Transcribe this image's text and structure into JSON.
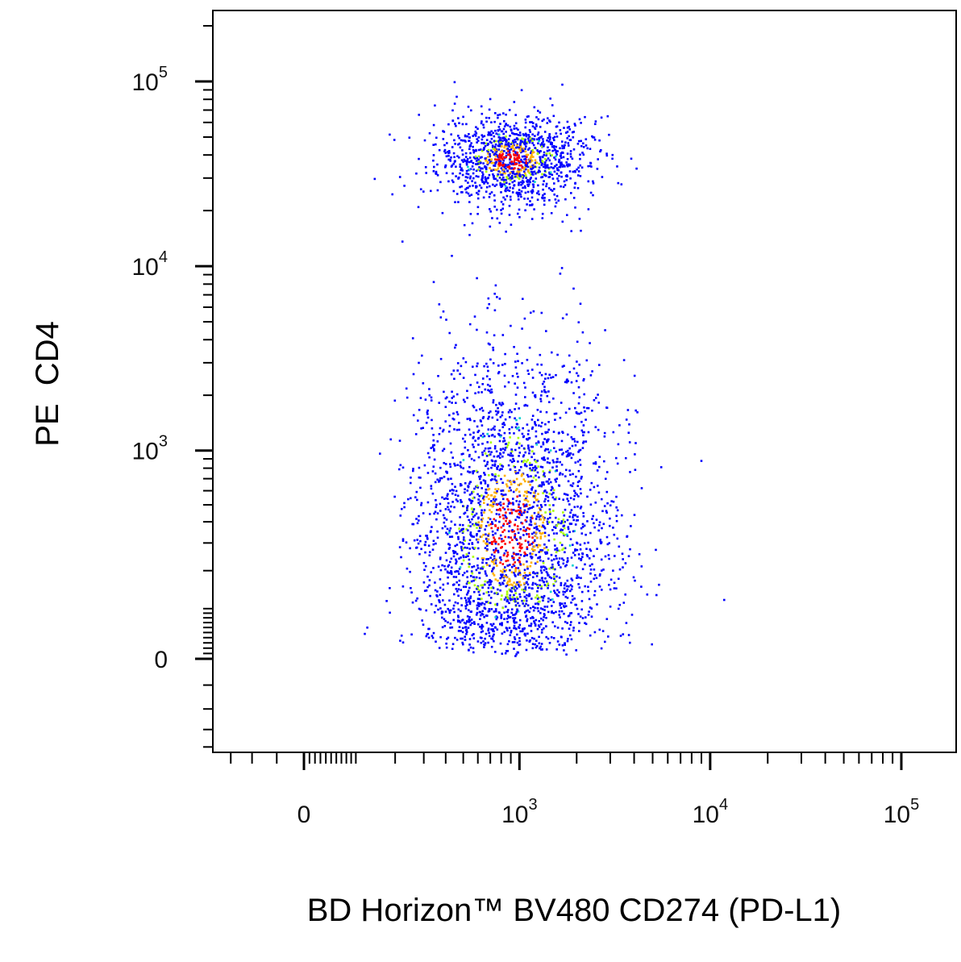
{
  "chart_data": {
    "type": "scatter",
    "style": "flow-cytometry-pseudocolor-dot-plot",
    "xlabel": "BD Horizon™ BV480 CD274 (PD-L1)",
    "ylabel": "PE  CD4",
    "x_scale": "biexponential",
    "y_scale": "biexponential",
    "x_ticks": [
      {
        "value": 0,
        "base": "0",
        "exp": ""
      },
      {
        "value": 1000,
        "base": "10",
        "exp": "3"
      },
      {
        "value": 10000,
        "base": "10",
        "exp": "4"
      },
      {
        "value": 100000,
        "base": "10",
        "exp": "5"
      }
    ],
    "y_ticks": [
      {
        "value": 0,
        "base": "0",
        "exp": ""
      },
      {
        "value": 1000,
        "base": "10",
        "exp": "3"
      },
      {
        "value": 10000,
        "base": "10",
        "exp": "4"
      },
      {
        "value": 100000,
        "base": "10",
        "exp": "5"
      }
    ],
    "xlim": [
      -700,
      250000
    ],
    "ylim": [
      -500,
      250000
    ],
    "grid": false,
    "density_colors": [
      "#0000ff",
      "#00d0d0",
      "#a8ff00",
      "#ffb000",
      "#ff0000"
    ],
    "populations": [
      {
        "x_center": 900,
        "y_center": 38000,
        "x_spread_decades": 0.2,
        "y_spread_decades": 0.12,
        "count": 1300
      },
      {
        "x_center": 900,
        "y_center": 350,
        "x_spread_decades": 0.26,
        "y_spread_decades": 0.5,
        "count": 2800
      }
    ]
  }
}
